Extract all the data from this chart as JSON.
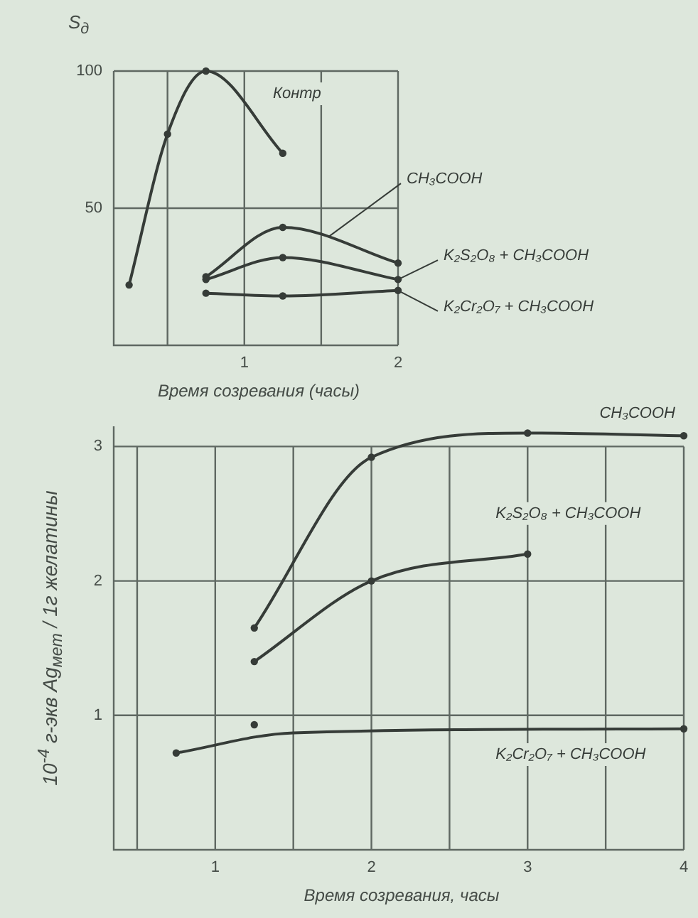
{
  "chart_data": [
    {
      "type": "line",
      "xlabel": "Время созревания (часы)",
      "ylabel": "S$_{д}$",
      "xlim": [
        0.15,
        2
      ],
      "xticks": [
        {
          "value": 0.5,
          "label": null
        },
        1,
        {
          "value": 1.5,
          "label": null
        },
        2
      ],
      "ylim": [
        0,
        100
      ],
      "yticks": [
        50,
        100
      ],
      "grid": true,
      "marker": "circle",
      "series": [
        {
          "name": "Контр",
          "color": "#363c38",
          "x": [
            0.25,
            0.5,
            0.75,
            1.25
          ],
          "values": [
            22,
            77,
            100,
            70
          ]
        },
        {
          "name": "CH₃COOH",
          "color": "#363c38",
          "x": [
            0.75,
            1.25,
            2
          ],
          "values": [
            25,
            43,
            30
          ]
        },
        {
          "name": "K₂S₂O₈ + CH₃COOH",
          "color": "#363c38",
          "x": [
            0.75,
            1.25,
            2
          ],
          "values": [
            24,
            32,
            24
          ]
        },
        {
          "name": "K₂Cr₂O₇ + CH₃COOH",
          "color": "#363c38",
          "x": [
            0.75,
            1.25,
            2
          ],
          "values": [
            19,
            18,
            20
          ]
        }
      ]
    },
    {
      "type": "line",
      "xlabel": "Время созревания, часы",
      "ylabel": "10$^{-4}$ г-экв Ag$_{мет}$ / 1г желатины",
      "xlim": [
        0.35,
        4
      ],
      "xticks": [
        {
          "value": 0.5,
          "label": null
        },
        1,
        {
          "value": 1.5,
          "label": null
        },
        2,
        {
          "value": 2.5,
          "label": null
        },
        3,
        {
          "value": 3.5,
          "label": null
        },
        4
      ],
      "ylim": [
        0,
        3.15
      ],
      "yticks": [
        1,
        2,
        3
      ],
      "grid": true,
      "marker": "circle",
      "series": [
        {
          "name": "CH₃COOH",
          "color": "#363c38",
          "x": [
            1.25,
            2,
            3,
            4
          ],
          "values": [
            1.65,
            2.92,
            3.1,
            3.08
          ]
        },
        {
          "name": "K₂S₂O₈ + CH₃COOH",
          "color": "#363c38",
          "x": [
            1.25,
            2,
            3
          ],
          "values": [
            1.4,
            2.0,
            2.2
          ]
        },
        {
          "name": "K₂Cr₂O₇ + CH₃COOH",
          "color": "#363c38",
          "marker": "none",
          "x": [
            0.75,
            1.5,
            4
          ],
          "values": [
            0.72,
            0.87,
            0.9
          ]
        },
        {
          "type": "scatter",
          "color": "#363c38",
          "x": [
            0.75,
            1.25,
            4
          ],
          "values": [
            0.72,
            0.93,
            0.9
          ]
        }
      ]
    }
  ]
}
